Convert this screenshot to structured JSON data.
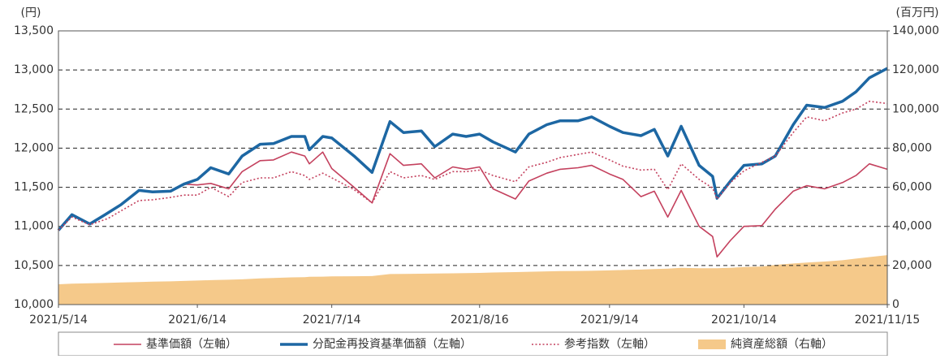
{
  "chart_data": {
    "type": "line",
    "y_unit": "(円)",
    "y2_unit": "(百万円)",
    "x": [
      "2021/5/14",
      "2021/5/17",
      "2021/5/21",
      "2021/5/25",
      "2021/5/28",
      "2021/6/1",
      "2021/6/4",
      "2021/6/8",
      "2021/6/11",
      "2021/6/14",
      "2021/6/17",
      "2021/6/21",
      "2021/6/24",
      "2021/6/28",
      "2021/7/1",
      "2021/7/5",
      "2021/7/8",
      "2021/7/9",
      "2021/7/12",
      "2021/7/14",
      "2021/7/19",
      "2021/7/23",
      "2021/7/27",
      "2021/7/30",
      "2021/8/3",
      "2021/8/6",
      "2021/8/10",
      "2021/8/13",
      "2021/8/16",
      "2021/8/19",
      "2021/8/24",
      "2021/8/27",
      "2021/8/31",
      "2021/9/3",
      "2021/9/7",
      "2021/9/10",
      "2021/9/14",
      "2021/9/17",
      "2021/9/21",
      "2021/9/24",
      "2021/9/27",
      "2021/9/30",
      "2021/10/4",
      "2021/10/7",
      "2021/10/8",
      "2021/10/11",
      "2021/10/14",
      "2021/10/18",
      "2021/10/21",
      "2021/10/25",
      "2021/10/28",
      "2021/11/1",
      "2021/11/5",
      "2021/11/8",
      "2021/11/11",
      "2021/11/15"
    ],
    "series": [
      {
        "name": "基準価額（左軸）",
        "color": "#c4415e",
        "style": "solid",
        "axis": "y",
        "values": [
          10950,
          11150,
          11030,
          11170,
          11280,
          11460,
          11440,
          11450,
          11540,
          11530,
          11550,
          11480,
          11700,
          11840,
          11850,
          11950,
          11900,
          11800,
          11950,
          11740,
          11500,
          11300,
          11930,
          11780,
          11800,
          11620,
          11760,
          11730,
          11760,
          11480,
          11350,
          11580,
          11680,
          11730,
          11750,
          11780,
          11670,
          11600,
          11380,
          11450,
          11120,
          11460,
          11000,
          10870,
          10610,
          10820,
          11000,
          11010,
          11220,
          11450,
          11520,
          11480,
          11560,
          11650,
          11800,
          11730
        ]
      },
      {
        "name": "分配金再投資基準価額（左軸）",
        "color": "#1d67a3",
        "style": "thick",
        "axis": "y",
        "values": [
          10950,
          11150,
          11030,
          11170,
          11280,
          11460,
          11440,
          11450,
          11540,
          11600,
          11750,
          11670,
          11900,
          12050,
          12060,
          12150,
          12150,
          11980,
          12150,
          12130,
          11900,
          11690,
          12340,
          12200,
          12220,
          12020,
          12180,
          12150,
          12180,
          12080,
          11950,
          12180,
          12300,
          12350,
          12350,
          12400,
          12280,
          12200,
          12160,
          12240,
          11900,
          12280,
          11780,
          11640,
          11360,
          11580,
          11780,
          11800,
          11900,
          12300,
          12550,
          12520,
          12600,
          12720,
          12900,
          13020
        ]
      },
      {
        "name": "参考指数（左軸）",
        "color": "#c4415e",
        "style": "dotted",
        "axis": "y",
        "values": [
          10950,
          11120,
          11020,
          11100,
          11200,
          11330,
          11340,
          11370,
          11400,
          11400,
          11500,
          11380,
          11560,
          11620,
          11620,
          11700,
          11650,
          11600,
          11680,
          11620,
          11470,
          11300,
          11700,
          11620,
          11650,
          11600,
          11700,
          11700,
          11720,
          11650,
          11570,
          11760,
          11820,
          11880,
          11920,
          11950,
          11850,
          11770,
          11720,
          11730,
          11470,
          11800,
          11600,
          11490,
          11350,
          11560,
          11710,
          11820,
          11900,
          12200,
          12400,
          12350,
          12450,
          12500,
          12600,
          12570
        ]
      },
      {
        "name": "純資産総額（右軸）",
        "color": "#f5c98a",
        "style": "area",
        "axis": "y2",
        "values": [
          10400,
          10700,
          10900,
          11100,
          11300,
          11500,
          11700,
          11900,
          12100,
          12300,
          12500,
          12700,
          12900,
          13400,
          13600,
          13900,
          14000,
          14200,
          14300,
          14400,
          14500,
          14600,
          15600,
          15700,
          15800,
          15900,
          16000,
          16100,
          16200,
          16400,
          16600,
          16800,
          17000,
          17100,
          17200,
          17300,
          17500,
          17700,
          17900,
          18200,
          18400,
          18800,
          18600,
          18600,
          18600,
          18800,
          19200,
          19500,
          20300,
          21000,
          21500,
          22000,
          22700,
          23500,
          24300,
          25300
        ]
      }
    ],
    "xticks": [
      "2021/5/14",
      "2021/6/14",
      "2021/7/14",
      "2021/8/16",
      "2021/9/14",
      "2021/10/14",
      "2021/11/15"
    ],
    "ylim": [
      10000,
      13500
    ],
    "yticks": [
      {
        "value": 10000,
        "label": "10,000"
      },
      {
        "value": 10500,
        "label": "10,500"
      },
      {
        "value": 11000,
        "label": "11,000"
      },
      {
        "value": 11500,
        "label": "11,500"
      },
      {
        "value": 12000,
        "label": "12,000"
      },
      {
        "value": 12500,
        "label": "12,500"
      },
      {
        "value": 13000,
        "label": "13,000"
      },
      {
        "value": 13500,
        "label": "13,500"
      }
    ],
    "y2lim": [
      0,
      140000
    ],
    "y2ticks": [
      0,
      {
        "value": 20000,
        "label": "20,000"
      },
      {
        "value": 40000,
        "label": "40,000"
      },
      {
        "value": 60000,
        "label": "60,000"
      },
      {
        "value": 80000,
        "label": "80,000"
      },
      {
        "value": 100000,
        "label": "100,000"
      },
      {
        "value": 120000,
        "label": "120,000"
      },
      {
        "value": 140000,
        "label": "140,000"
      }
    ],
    "grid": true
  }
}
